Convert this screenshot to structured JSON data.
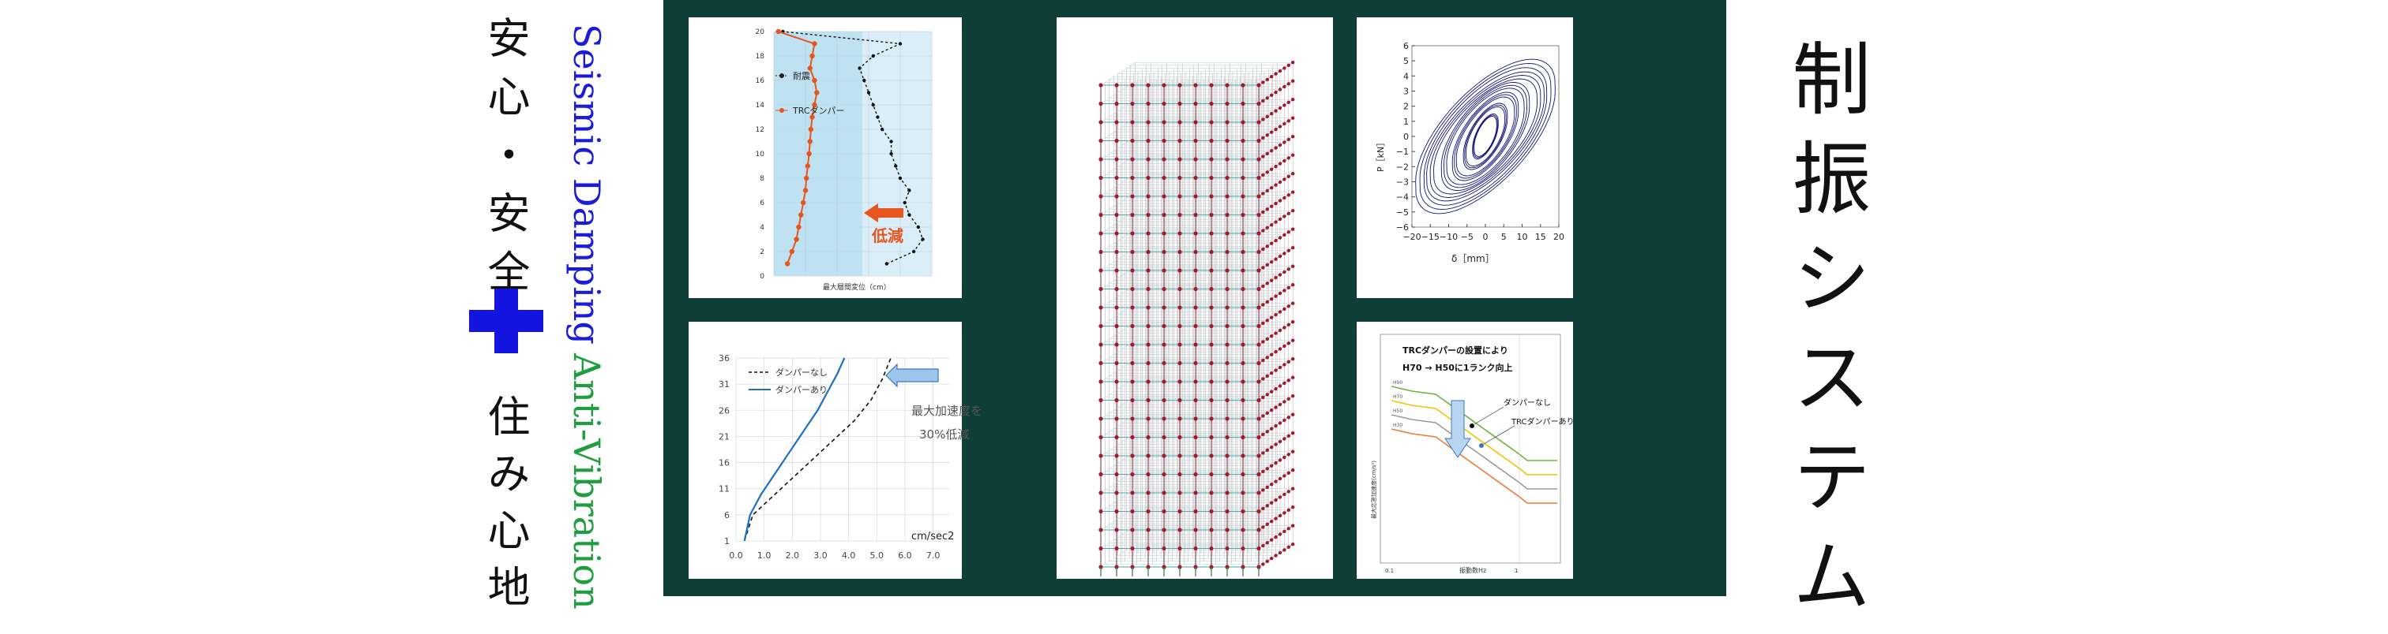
{
  "left_text": {
    "jp_top": "安心・安全",
    "jp_bottom": "住み心地",
    "en_top": "Seismic Damping",
    "en_bottom": "Anti-Vibration"
  },
  "right_title": "制振システム",
  "colors": {
    "panel_bg": "#0f3d37",
    "plus": "#1414e0",
    "en_top": "#1a1add",
    "en_bottom": "#1e9e3e",
    "damper": "#e8551e",
    "hysteresis": "#12127a"
  },
  "icons": {
    "plus": "plus-icon",
    "arrow_left": "arrow-left-icon",
    "arrow_down": "arrow-down-icon"
  },
  "chart_data": [
    {
      "type": "line",
      "title": "",
      "xlabel": "最大層間変位（cm）",
      "ylabel": "",
      "ylim": [
        0,
        20
      ],
      "yticks": [
        "0",
        "2",
        "4",
        "6",
        "8",
        "10",
        "12",
        "14",
        "16",
        "18",
        "20"
      ],
      "series": [
        {
          "name": "耐震",
          "y": [
            1,
            2,
            3,
            4,
            5,
            6,
            7,
            8,
            9,
            10,
            11,
            12,
            13,
            14,
            15,
            16,
            17,
            18,
            19,
            20
          ],
          "values": [
            2.5,
            3.1,
            3.3,
            3.2,
            3.0,
            2.9,
            3.0,
            2.8,
            2.7,
            2.6,
            2.6,
            2.4,
            2.3,
            2.2,
            2.1,
            2.0,
            1.9,
            2.2,
            2.8,
            0.2
          ]
        },
        {
          "name": "TRCダンパー",
          "y": [
            1,
            2,
            3,
            4,
            5,
            6,
            7,
            8,
            9,
            10,
            11,
            12,
            13,
            14,
            15,
            16,
            17,
            18,
            19,
            20
          ],
          "values": [
            0.3,
            0.4,
            0.5,
            0.55,
            0.6,
            0.65,
            0.7,
            0.72,
            0.75,
            0.78,
            0.8,
            0.82,
            0.85,
            0.9,
            0.95,
            0.9,
            0.8,
            0.85,
            0.9,
            0.1
          ]
        }
      ],
      "annotations": [
        "低減"
      ]
    },
    {
      "type": "line",
      "title": "",
      "xlabel": "cm/sec2",
      "ylabel": "",
      "xlim": [
        0,
        7
      ],
      "ylim": [
        1,
        36
      ],
      "xticks": [
        "0.0",
        "1.0",
        "2.0",
        "3.0",
        "4.0",
        "5.0",
        "6.0",
        "7.0"
      ],
      "yticks": [
        "1",
        "6",
        "11",
        "16",
        "21",
        "26",
        "31",
        "36"
      ],
      "series": [
        {
          "name": "ダンパーなし",
          "x": [
            0.3,
            0.6,
            1.2,
            1.8,
            2.4,
            3.0,
            3.6,
            4.2,
            4.8,
            5.2,
            5.5
          ],
          "values": [
            1,
            6,
            9,
            12,
            15,
            18,
            21,
            24,
            28,
            32,
            36
          ]
        },
        {
          "name": "ダンパーあり",
          "x": [
            0.3,
            0.5,
            0.9,
            1.4,
            1.9,
            2.4,
            2.9,
            3.3,
            3.6,
            3.85
          ],
          "values": [
            1,
            6,
            10,
            14,
            18,
            22,
            26,
            30,
            33,
            36
          ]
        }
      ],
      "annotations": [
        "最大加速度を",
        "30%低減"
      ]
    },
    {
      "type": "scatter",
      "title": "",
      "xlabel": "δ［mm］",
      "ylabel": "P［kN］",
      "xlim": [
        -20,
        20
      ],
      "ylim": [
        -6,
        6
      ],
      "xticks": [
        "−20",
        "−15",
        "−10",
        "−5",
        "0",
        "5",
        "10",
        "15",
        "20"
      ],
      "yticks": [
        "6",
        "5",
        "4",
        "3",
        "2",
        "1",
        "0",
        "−1",
        "−2",
        "−3",
        "−4",
        "−5",
        "−6"
      ],
      "series": [
        {
          "name": "",
          "loops": [
            {
              "amp_x": 19,
              "amp_y": 3.6,
              "tilt": 0.17
            },
            {
              "amp_x": 16,
              "amp_y": 3.0,
              "tilt": 0.17
            },
            {
              "amp_x": 12,
              "amp_y": 2.6,
              "tilt": 0.18
            },
            {
              "amp_x": 9,
              "amp_y": 2.1,
              "tilt": 0.2
            },
            {
              "amp_x": 6,
              "amp_y": 1.6,
              "tilt": 0.22
            },
            {
              "amp_x": 3.5,
              "amp_y": 1.1,
              "tilt": 0.25
            }
          ]
        }
      ]
    },
    {
      "type": "line",
      "title": "TRCダンパーの設置により",
      "subtitle": "H70 → H50に1ランク向上",
      "xlabel": "振動数Hz",
      "ylabel": "最大応答加速度(cm/s²)",
      "xticks": [
        "0.1",
        "1"
      ],
      "series": [
        {
          "name": "H90",
          "color": "#6db33f"
        },
        {
          "name": "H70",
          "color": "#f2c400"
        },
        {
          "name": "H50",
          "color": "#9a9a9a"
        },
        {
          "name": "H30",
          "color": "#ee7b3a"
        }
      ],
      "annotations": [
        "ダンパーなし",
        "TRCダンパーあり"
      ]
    }
  ]
}
